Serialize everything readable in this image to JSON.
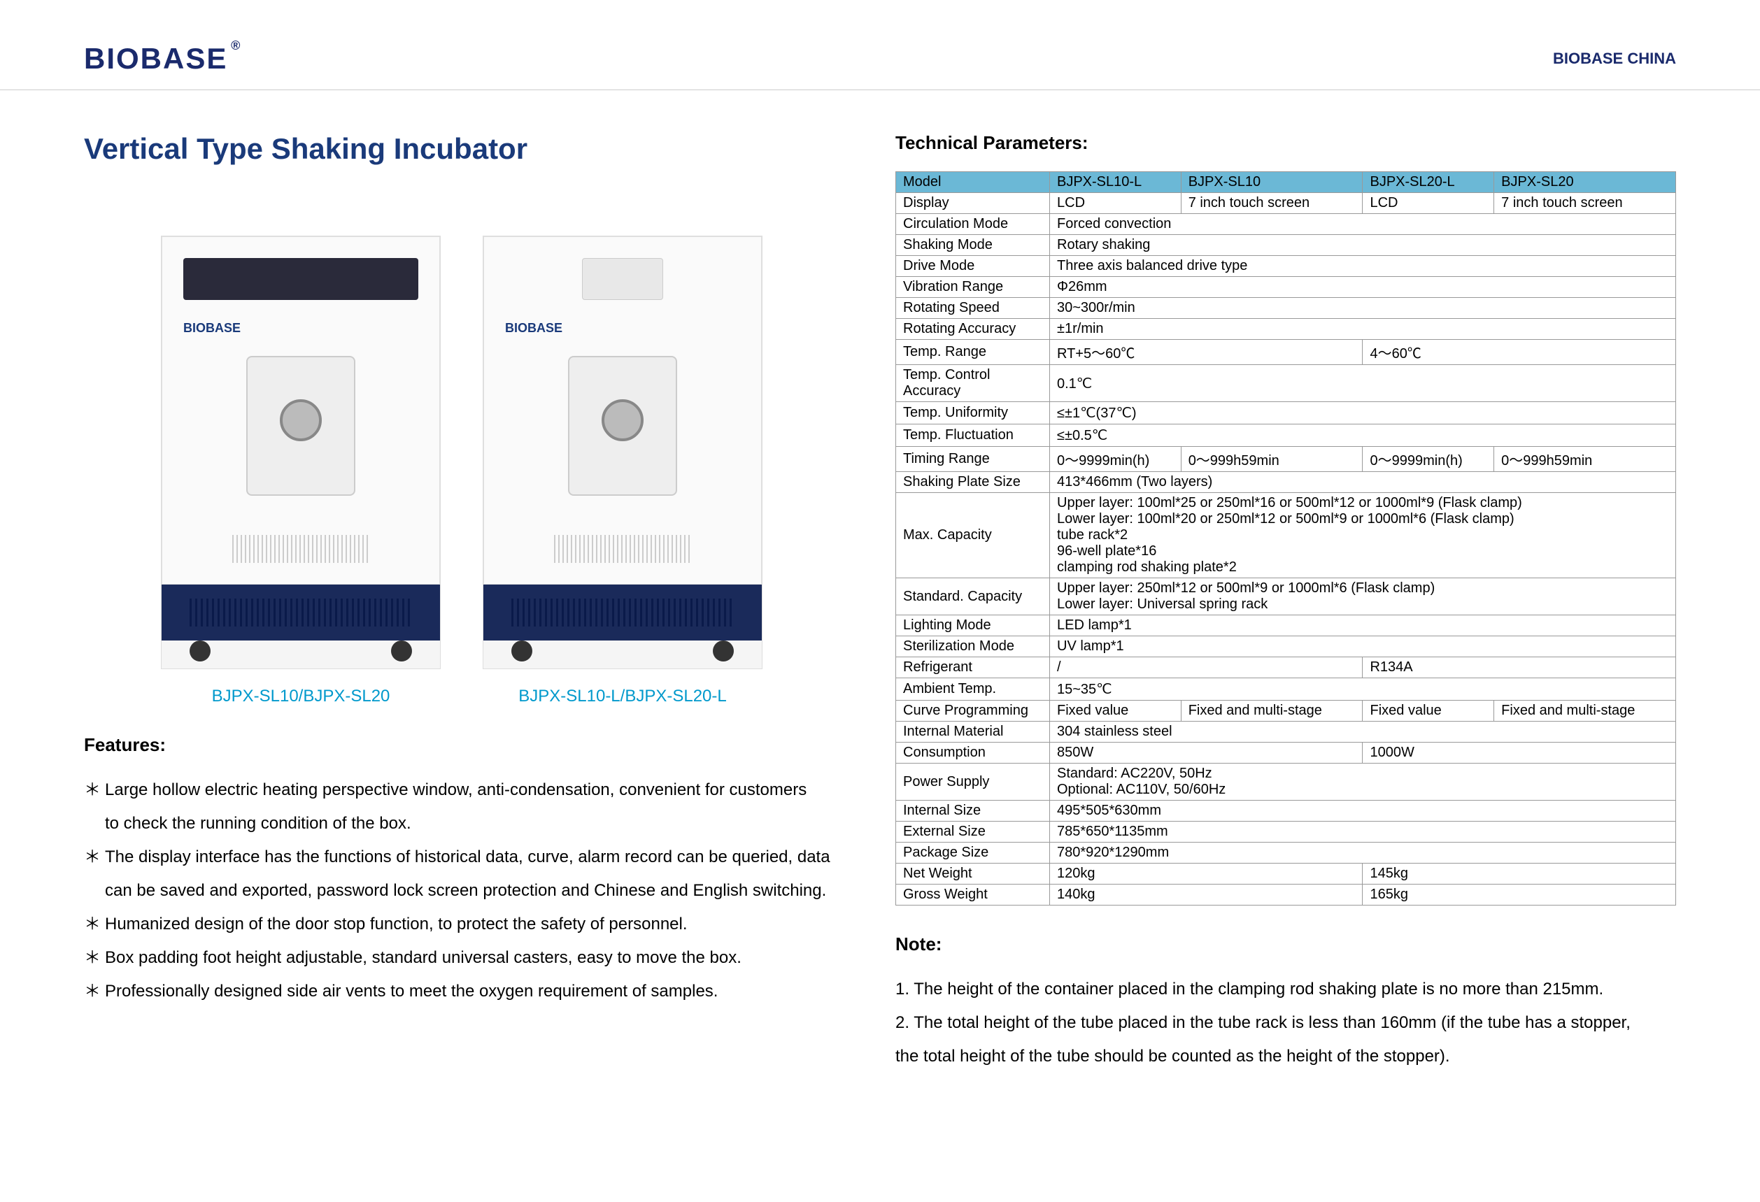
{
  "header": {
    "logo": "BIOBASE",
    "right": "BIOBASE CHINA"
  },
  "title": "Vertical Type Shaking Incubator",
  "products": [
    {
      "label": "BJPX-SL10/BJPX-SL20",
      "brand": "BIOBASE"
    },
    {
      "label": "BJPX-SL10-L/BJPX-SL20-L",
      "brand": "BIOBASE"
    }
  ],
  "features_title": "Features:",
  "features": [
    "Large hollow electric heating perspective window, anti-condensation, convenient for customers",
    "to check the running condition of the box.",
    "The display interface has the functions of historical data, curve, alarm record can be queried, data",
    "can be saved and exported, password lock screen protection and Chinese and English switching.",
    "Humanized design of the door stop function, to protect the safety of personnel.",
    "Box padding foot height adjustable, standard universal casters, easy to move the box.",
    "Professionally designed side air vents to meet the oxygen requirement of samples."
  ],
  "tech_title": "Technical Parameters:",
  "table": {
    "header_bg": "#6bb8d6",
    "rows": [
      {
        "type": "header",
        "cells": [
          "Model",
          "BJPX-SL10-L",
          "BJPX-SL10",
          "BJPX-SL20-L",
          "BJPX-SL20"
        ]
      },
      {
        "cells": [
          "Display",
          "LCD",
          "7 inch touch screen",
          "LCD",
          "7 inch touch screen"
        ]
      },
      {
        "cells": [
          "Circulation Mode"
        ],
        "span4": "Forced convection"
      },
      {
        "cells": [
          "Shaking Mode"
        ],
        "span4": "Rotary shaking"
      },
      {
        "cells": [
          "Drive Mode"
        ],
        "span4": "Three axis balanced drive type"
      },
      {
        "cells": [
          "Vibration Range"
        ],
        "span4": "Φ26mm"
      },
      {
        "cells": [
          "Rotating Speed"
        ],
        "span4": "30~300r/min"
      },
      {
        "cells": [
          "Rotating Accuracy"
        ],
        "span4": "±1r/min"
      },
      {
        "cells": [
          "Temp. Range"
        ],
        "span2a": "RT+5～60℃",
        "span2b": "4～60℃"
      },
      {
        "cells": [
          "Temp. Control Accuracy"
        ],
        "span4": "0.1℃"
      },
      {
        "cells": [
          "Temp. Uniformity"
        ],
        "span4": "≤±1℃(37℃)"
      },
      {
        "cells": [
          "Temp. Fluctuation"
        ],
        "span4": "≤±0.5℃"
      },
      {
        "cells": [
          "Timing Range",
          "0～9999min(h)",
          "0～999h59min",
          "0～9999min(h)",
          "0～999h59min"
        ]
      },
      {
        "cells": [
          "Shaking Plate Size"
        ],
        "span4": "413*466mm (Two layers)"
      },
      {
        "cells": [
          "Max. Capacity"
        ],
        "span4": "Upper layer: 100ml*25 or 250ml*16 or 500ml*12 or 1000ml*9 (Flask clamp)\nLower layer: 100ml*20 or 250ml*12 or 500ml*9 or 1000ml*6 (Flask clamp)\ntube rack*2\n96-well plate*16\nclamping rod shaking plate*2"
      },
      {
        "cells": [
          "Standard. Capacity"
        ],
        "span4": "Upper layer: 250ml*12 or 500ml*9 or 1000ml*6 (Flask clamp)\nLower layer: Universal spring rack"
      },
      {
        "cells": [
          "Lighting Mode"
        ],
        "span4": "LED lamp*1"
      },
      {
        "cells": [
          "Sterilization Mode"
        ],
        "span4": "UV lamp*1"
      },
      {
        "cells": [
          "Refrigerant"
        ],
        "span2a": "/",
        "span2b": "R134A"
      },
      {
        "cells": [
          "Ambient Temp."
        ],
        "span4": "15~35℃"
      },
      {
        "cells": [
          "Curve Programming",
          "Fixed value",
          "Fixed and multi-stage",
          "Fixed value",
          "Fixed and multi-stage"
        ]
      },
      {
        "cells": [
          "Internal Material"
        ],
        "span4": "304 stainless steel"
      },
      {
        "cells": [
          "Consumption"
        ],
        "span2a": "850W",
        "span2b": "1000W"
      },
      {
        "cells": [
          "Power Supply"
        ],
        "span4": "Standard: AC220V, 50Hz\nOptional: AC110V, 50/60Hz"
      },
      {
        "cells": [
          "Internal Size"
        ],
        "span4": "495*505*630mm"
      },
      {
        "cells": [
          "External Size"
        ],
        "span4": "785*650*1135mm"
      },
      {
        "cells": [
          "Package Size"
        ],
        "span4": "780*920*1290mm"
      },
      {
        "cells": [
          "Net Weight"
        ],
        "span2a": "120kg",
        "span2b": "145kg"
      },
      {
        "cells": [
          "Gross Weight"
        ],
        "span2a": "140kg",
        "span2b": "165kg"
      }
    ]
  },
  "note_title": "Note:",
  "notes": [
    "1. The height of the container placed in the clamping rod shaking plate is no more than 215mm.",
    "2. The total height of the tube placed in the tube rack is less than 160mm (if the tube has a stopper,",
    "the total height of the tube should be counted as the height of the stopper)."
  ]
}
